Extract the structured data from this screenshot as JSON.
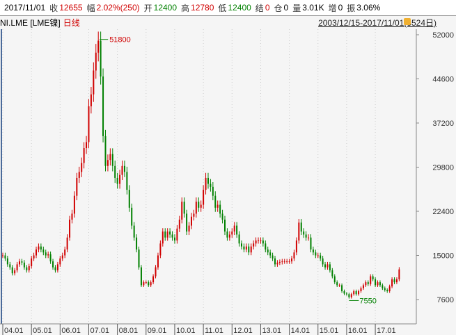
{
  "header": {
    "date": "2017/11/01",
    "close_label": "收",
    "close": "12655",
    "change_label": "幅",
    "change": "2.02%(250)",
    "open_label": "开",
    "open": "12400",
    "high_label": "高",
    "high": "12780",
    "low_label": "低",
    "low": "12400",
    "settle_label": "结",
    "settle": "0",
    "oi_label": "仓",
    "oi": "0",
    "vol_label": "量",
    "vol": "3.01K",
    "inc_label": "增",
    "inc": "0",
    "amp_label": "振",
    "amp": "3.06%"
  },
  "sub": {
    "symbol": "NI.LME [LME镍]",
    "period": "日线",
    "range": "2003/12/15-2017/11/01(3524日)"
  },
  "colors": {
    "up": "#d00000",
    "down": "#008000"
  },
  "chart_data": {
    "type": "candlestick",
    "start": "2004-01",
    "frequency": "monthly",
    "closes": [
      15000,
      14500,
      13500,
      13000,
      12000,
      12500,
      13500,
      14000,
      13800,
      13000,
      12500,
      13200,
      14500,
      15000,
      16000,
      16500,
      16000,
      15500,
      15000,
      15200,
      14000,
      13000,
      12500,
      13500,
      14500,
      15000,
      16000,
      18000,
      21000,
      22000,
      25000,
      28000,
      29000,
      30500,
      33000,
      34000,
      40000,
      42000,
      46000,
      49000,
      51000,
      45000,
      35000,
      30000,
      31000,
      32000,
      30000,
      28000,
      27000,
      28500,
      30000,
      29000,
      26000,
      23000,
      20000,
      18000,
      16000,
      13000,
      10000,
      10500,
      10500,
      10000,
      10500,
      11500,
      13000,
      15000,
      17000,
      19000,
      18000,
      19000,
      18500,
      18000,
      17500,
      19500,
      21000,
      24000,
      22000,
      19000,
      20000,
      21500,
      22000,
      24000,
      23000,
      23500,
      26000,
      28000,
      27000,
      26500,
      25000,
      23000,
      23500,
      22000,
      21000,
      19000,
      18000,
      18500,
      19000,
      20000,
      18500,
      17000,
      16500,
      16000,
      16500,
      15500,
      16500,
      17000,
      17500,
      17500,
      17500,
      17000,
      16000,
      15500,
      15000,
      14500,
      13500,
      13800,
      13900,
      14000,
      14000,
      14000,
      14000,
      14500,
      15500,
      17500,
      20500,
      19000,
      18500,
      18000,
      18000,
      16000,
      15500,
      15000,
      15000,
      14500,
      13500,
      13000,
      13500,
      12500,
      11500,
      10500,
      10000,
      10000,
      9000,
      8600,
      8500,
      8000,
      8500,
      9000,
      8500,
      9000,
      9500,
      10000,
      10500,
      10200,
      11500,
      11000,
      10000,
      10500,
      10000,
      9500,
      9200,
      9000,
      9800,
      11000,
      10500,
      11000,
      12655
    ],
    "yticks": [
      52000,
      44600,
      37200,
      29800,
      22400,
      15000,
      7600
    ],
    "xticks": [
      "04.01",
      "05.01",
      "06.01",
      "07.01",
      "08.01",
      "09.01",
      "10.01",
      "11.01",
      "12.01",
      "13.01",
      "14.01",
      "15.01",
      "16.01",
      "17.01"
    ],
    "annotations": [
      {
        "label": "51800",
        "value": 51800,
        "date": "2007-05"
      },
      {
        "label": "7550",
        "value": 7550,
        "date": "2016-02"
      }
    ]
  }
}
